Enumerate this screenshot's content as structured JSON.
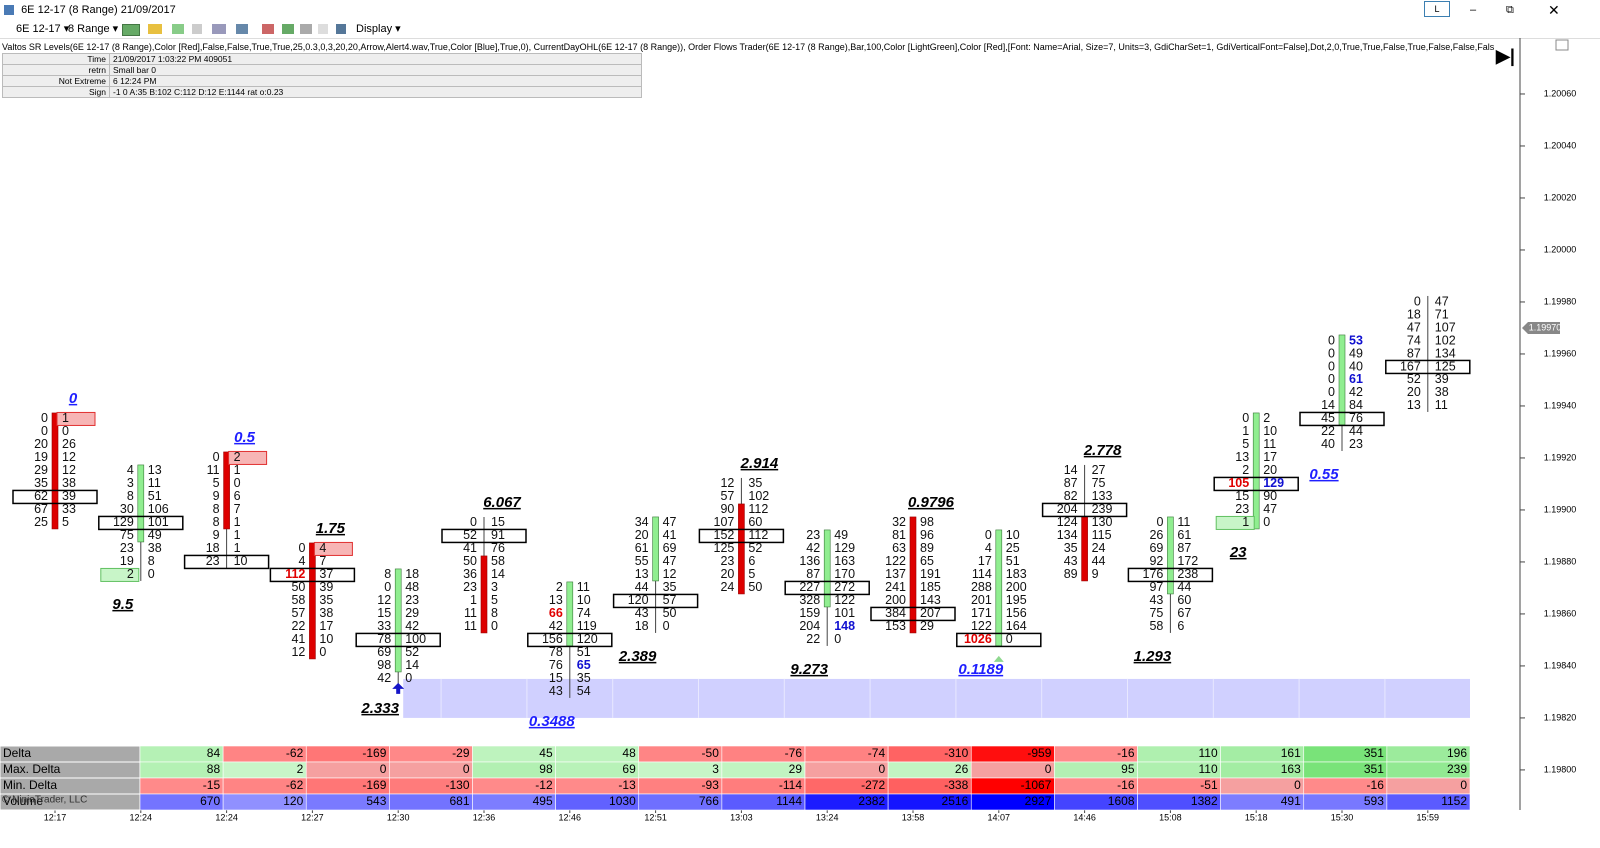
{
  "window": {
    "title": "6E 12-17 (8 Range)  21/09/2017",
    "symbol": "6E 12-17",
    "bar_type": "8 Range",
    "display": "Display",
    "button": "L"
  },
  "indicators": "Valtos SR Levels(6E 12-17 (8 Range),Color [Red],False,False,True,True,25,0.3,0,3,20,20,Arrow,Alert4.wav,True,Color [Blue],True,0), CurrentDayOHL(6E 12-17 (8 Range)),  Order Flows Trader(6E 12-17 (8 Range),Bar,100,Color [LightGreen],Color [Red],[Font: Name=Arial, Size=7, Units=3, GdiCharSet=1, GdiVerticalFont=False],Dot,2,0,True,True,False,True,False,False,Fals",
  "info": [
    [
      "Time",
      "21/09/2017 1:03:22 PM 409051"
    ],
    [
      "retrn",
      "Small bar 0"
    ],
    [
      "Not Extreme",
      "6 12:24 PM"
    ],
    [
      "Sign",
      "-1 0 A:35 B:102 C:112 D:12 E:1144 rat o:0.23"
    ]
  ],
  "chart_data": {
    "type": "footprint",
    "ylim": [
      1.197892,
      1.200823
    ],
    "yticks": [
      {
        "value": 1.2006,
        "label": "1.20060"
      },
      {
        "value": 1.2004,
        "label": "1.20040"
      },
      {
        "value": 1.2002,
        "label": "1.20020"
      },
      {
        "value": 1.2,
        "label": "1.20000"
      },
      {
        "value": 1.1998,
        "label": "1.19980"
      },
      {
        "value": 1.1996,
        "label": "1.19960"
      },
      {
        "value": 1.1994,
        "label": "1.19940"
      },
      {
        "value": 1.1992,
        "label": "1.19920"
      },
      {
        "value": 1.199,
        "label": "1.19900"
      },
      {
        "value": 1.1988,
        "label": "1.19880"
      },
      {
        "value": 1.1986,
        "label": "1.19860"
      },
      {
        "value": 1.1984,
        "label": "1.19840"
      },
      {
        "value": 1.1982,
        "label": "1.19820"
      },
      {
        "value": 1.198,
        "label": "1.19800"
      }
    ],
    "last_price": {
      "value": 1.1997,
      "label": "1.19970"
    },
    "zone": {
      "low": 1.1982,
      "high": 1.19835,
      "color": "#c8c8ff"
    },
    "up_color": "#90ee90",
    "down_color": "#dd0000",
    "bars": [
      {
        "time": "12:17",
        "high": 1.19935,
        "low": 1.19895,
        "open": 1.19935,
        "close": 1.19895,
        "rows": [
          [
            0,
            1
          ],
          [
            0,
            0
          ],
          [
            20,
            26
          ],
          [
            19,
            12
          ],
          [
            29,
            12
          ],
          [
            35,
            38
          ],
          [
            62,
            39
          ],
          [
            67,
            33
          ],
          [
            25,
            5
          ]
        ],
        "poc": 6,
        "label": 0,
        "label_pos": "above",
        "label_color": "#1f1fff",
        "red_box": [
          [
            0,
            1
          ]
        ]
      },
      {
        "time": "12:24",
        "high": 1.19915,
        "low": 1.19875,
        "open": 1.1989,
        "close": 1.19915,
        "rows": [
          [
            4,
            13
          ],
          [
            3,
            11
          ],
          [
            8,
            51
          ],
          [
            30,
            106
          ],
          [
            129,
            101
          ],
          [
            75,
            49
          ],
          [
            23,
            38
          ],
          [
            19,
            8
          ],
          [
            2,
            0
          ]
        ],
        "poc": 4,
        "label": 9.5,
        "label_pos": "below",
        "label_color": "#000000",
        "green_box": [
          [
            8,
            0
          ]
        ]
      },
      {
        "time": "12:24",
        "high": 1.1992,
        "low": 1.1988,
        "open": 1.1992,
        "close": 1.19895,
        "rows": [
          [
            0,
            2
          ],
          [
            11,
            1
          ],
          [
            5,
            0
          ],
          [
            9,
            6
          ],
          [
            8,
            7
          ],
          [
            8,
            1
          ],
          [
            9,
            1
          ],
          [
            18,
            1
          ],
          [
            23,
            10
          ]
        ],
        "poc": 8,
        "label": 0.5,
        "label_pos": "above",
        "label_color": "#1f1fff",
        "red_box": [
          [
            0,
            1
          ]
        ]
      },
      {
        "time": "12:27",
        "high": 1.19885,
        "low": 1.19845,
        "open": 1.19885,
        "close": 1.19845,
        "rows": [
          [
            0,
            4
          ],
          [
            4,
            7
          ],
          [
            112,
            37
          ],
          [
            50,
            39
          ],
          [
            58,
            35
          ],
          [
            57,
            38
          ],
          [
            22,
            17
          ],
          [
            41,
            10
          ],
          [
            12,
            0
          ]
        ],
        "poc": 2,
        "label": 1.75,
        "label_pos": "above",
        "label_color": "#000000",
        "red_box": [
          [
            0,
            1
          ]
        ],
        "red_text": [
          [
            2,
            0
          ]
        ]
      },
      {
        "time": "12:30",
        "high": 1.19875,
        "low": 1.19835,
        "open": 1.1984,
        "close": 1.19875,
        "rows": [
          [
            8,
            18
          ],
          [
            0,
            48
          ],
          [
            12,
            23
          ],
          [
            15,
            29
          ],
          [
            33,
            42
          ],
          [
            78,
            100
          ],
          [
            69,
            52
          ],
          [
            98,
            14
          ],
          [
            42,
            0
          ]
        ],
        "poc": 5,
        "label": 2.333,
        "label_pos": "below",
        "label_color": "#000000"
      },
      {
        "time": "12:36",
        "high": 1.19895,
        "low": 1.19855,
        "open": 1.1988,
        "close": 1.19855,
        "rows": [
          [
            0,
            15
          ],
          [
            52,
            91
          ],
          [
            41,
            76
          ],
          [
            50,
            58
          ],
          [
            36,
            14
          ],
          [
            23,
            3
          ],
          [
            1,
            5
          ],
          [
            11,
            8
          ],
          [
            11,
            0
          ]
        ],
        "poc": 1,
        "label": 6.067,
        "label_pos": "above",
        "label_color": "#000000"
      },
      {
        "time": "12:46",
        "high": 1.1987,
        "low": 1.1983,
        "open": 1.1985,
        "close": 1.1987,
        "rows": [
          [
            2,
            11
          ],
          [
            13,
            10
          ],
          [
            66,
            74
          ],
          [
            42,
            119
          ],
          [
            156,
            120
          ],
          [
            78,
            51
          ],
          [
            76,
            65
          ],
          [
            15,
            35
          ],
          [
            43,
            54
          ]
        ],
        "poc": 4,
        "label": 0.3488,
        "label_pos": "below",
        "label_color": "#1f1fff",
        "red_text": [
          [
            2,
            0
          ]
        ],
        "blue_text": [
          [
            6,
            1
          ]
        ]
      },
      {
        "time": "12:51",
        "high": 1.19895,
        "low": 1.19855,
        "open": 1.19875,
        "close": 1.19895,
        "rows": [
          [
            34,
            47
          ],
          [
            20,
            41
          ],
          [
            61,
            69
          ],
          [
            55,
            47
          ],
          [
            13,
            12
          ],
          [
            44,
            35
          ],
          [
            120,
            57
          ],
          [
            43,
            50
          ],
          [
            18,
            0
          ]
        ],
        "poc": 6,
        "label": 2.389,
        "label_pos": "below",
        "label_color": "#000000"
      },
      {
        "time": "13:03",
        "high": 1.1991,
        "low": 1.1987,
        "open": 1.199,
        "close": 1.1987,
        "rows": [
          [
            12,
            35
          ],
          [
            57,
            102
          ],
          [
            90,
            112
          ],
          [
            107,
            60
          ],
          [
            152,
            112
          ],
          [
            125,
            52
          ],
          [
            23,
            6
          ],
          [
            20,
            5
          ],
          [
            24,
            50
          ]
        ],
        "poc": 4,
        "label": 2.914,
        "label_pos": "above",
        "label_color": "#000000"
      },
      {
        "time": "13:24",
        "high": 1.1989,
        "low": 1.1985,
        "open": 1.19865,
        "close": 1.1989,
        "rows": [
          [
            23,
            49
          ],
          [
            42,
            129
          ],
          [
            136,
            163
          ],
          [
            87,
            170
          ],
          [
            227,
            272
          ],
          [
            328,
            122
          ],
          [
            159,
            101
          ],
          [
            204,
            148
          ],
          [
            22,
            0
          ]
        ],
        "poc": 4,
        "label": 9.273,
        "label_pos": "below",
        "label_color": "#000000",
        "blue_text": [
          [
            7,
            1
          ]
        ]
      },
      {
        "time": "13:58",
        "high": 1.19895,
        "low": 1.19855,
        "open": 1.19895,
        "close": 1.19855,
        "rows": [
          [
            32,
            98
          ],
          [
            81,
            96
          ],
          [
            63,
            89
          ],
          [
            122,
            65
          ],
          [
            137,
            191
          ],
          [
            241,
            185
          ],
          [
            200,
            143
          ],
          [
            384,
            207
          ],
          [
            153,
            29
          ]
        ],
        "poc": 7,
        "label": 0.9796,
        "label_pos": "above",
        "label_color": "#000000"
      },
      {
        "time": "14:07",
        "high": 1.1989,
        "low": 1.1985,
        "open": 1.1985,
        "close": 1.1989,
        "rows": [
          [
            0,
            10
          ],
          [
            4,
            25
          ],
          [
            17,
            51
          ],
          [
            114,
            183
          ],
          [
            288,
            200
          ],
          [
            201,
            195
          ],
          [
            171,
            156
          ],
          [
            122,
            164
          ],
          [
            1026,
            0
          ]
        ],
        "poc": 8,
        "label": 0.1189,
        "label_pos": "below",
        "label_color": "#1f1fff",
        "red_text": [
          [
            8,
            0
          ]
        ]
      },
      {
        "time": "14:46",
        "high": 1.19915,
        "low": 1.19875,
        "open": 1.19895,
        "close": 1.19875,
        "rows": [
          [
            14,
            27
          ],
          [
            87,
            75
          ],
          [
            82,
            133
          ],
          [
            204,
            239
          ],
          [
            124,
            130
          ],
          [
            134,
            115
          ],
          [
            35,
            24
          ],
          [
            43,
            44
          ],
          [
            89,
            9
          ]
        ],
        "poc": 3,
        "label": 2.778,
        "label_pos": "above",
        "label_color": "#000000"
      },
      {
        "time": "15:08",
        "high": 1.19895,
        "low": 1.19855,
        "open": 1.1987,
        "close": 1.19895,
        "rows": [
          [
            0,
            11
          ],
          [
            26,
            61
          ],
          [
            69,
            87
          ],
          [
            92,
            172
          ],
          [
            176,
            238
          ],
          [
            97,
            44
          ],
          [
            43,
            60
          ],
          [
            75,
            67
          ],
          [
            58,
            6
          ]
        ],
        "poc": 4,
        "label": 1.293,
        "label_pos": "below",
        "label_color": "#000000"
      },
      {
        "time": "15:18",
        "high": 1.19935,
        "low": 1.19895,
        "open": 1.19895,
        "close": 1.19935,
        "rows": [
          [
            0,
            2
          ],
          [
            1,
            10
          ],
          [
            5,
            11
          ],
          [
            13,
            17
          ],
          [
            2,
            20
          ],
          [
            105,
            129
          ],
          [
            15,
            90
          ],
          [
            23,
            47
          ],
          [
            1,
            0
          ]
        ],
        "poc": 5,
        "label": 23,
        "label_pos": "below",
        "label_color": "#000000",
        "red_text": [
          [
            5,
            0
          ]
        ],
        "blue_text": [
          [
            5,
            1
          ]
        ],
        "green_box": [
          [
            8,
            0
          ]
        ]
      },
      {
        "time": "15:30",
        "high": 1.19965,
        "low": 1.19925,
        "open": 1.19935,
        "close": 1.19965,
        "rows": [
          [
            0,
            53
          ],
          [
            0,
            49
          ],
          [
            0,
            40
          ],
          [
            0,
            61
          ],
          [
            0,
            42
          ],
          [
            14,
            84
          ],
          [
            45,
            76
          ],
          [
            22,
            44
          ],
          [
            40,
            23
          ]
        ],
        "poc": 6,
        "label": 0.55,
        "label_pos": "below",
        "label_color": "#1f1fff",
        "blue_text": [
          [
            0,
            1
          ],
          [
            3,
            1
          ]
        ]
      },
      {
        "time": "15:59",
        "high": 1.1998,
        "low": 1.1994,
        "rows": [
          [
            0,
            47
          ],
          [
            18,
            71
          ],
          [
            47,
            107
          ],
          [
            74,
            102
          ],
          [
            87,
            134
          ],
          [
            167,
            125
          ],
          [
            52,
            39
          ],
          [
            20,
            38
          ],
          [
            13,
            11
          ]
        ],
        "poc": 5
      }
    ]
  },
  "stats": [
    {
      "label": "Delta",
      "values": [
        84,
        -62,
        -169,
        -29,
        45,
        48,
        -50,
        -76,
        -74,
        -310,
        -959,
        -16,
        110,
        161,
        351,
        196
      ]
    },
    {
      "label": "Max. Delta",
      "values": [
        88,
        2,
        0,
        0,
        98,
        69,
        3,
        29,
        0,
        26,
        0,
        95,
        110,
        163,
        351,
        239
      ]
    },
    {
      "label": "Min. Delta",
      "values": [
        -15,
        -62,
        -169,
        -130,
        -12,
        -13,
        -93,
        -114,
        -272,
        -338,
        -1067,
        -16,
        -51,
        0,
        -16,
        0
      ]
    },
    {
      "label": "Volume",
      "values": [
        670,
        120,
        543,
        681,
        495,
        1030,
        766,
        1144,
        2382,
        2516,
        2927,
        1608,
        1382,
        491,
        593,
        1152
      ]
    }
  ],
  "copyright": "© NinjaTrader, LLC"
}
